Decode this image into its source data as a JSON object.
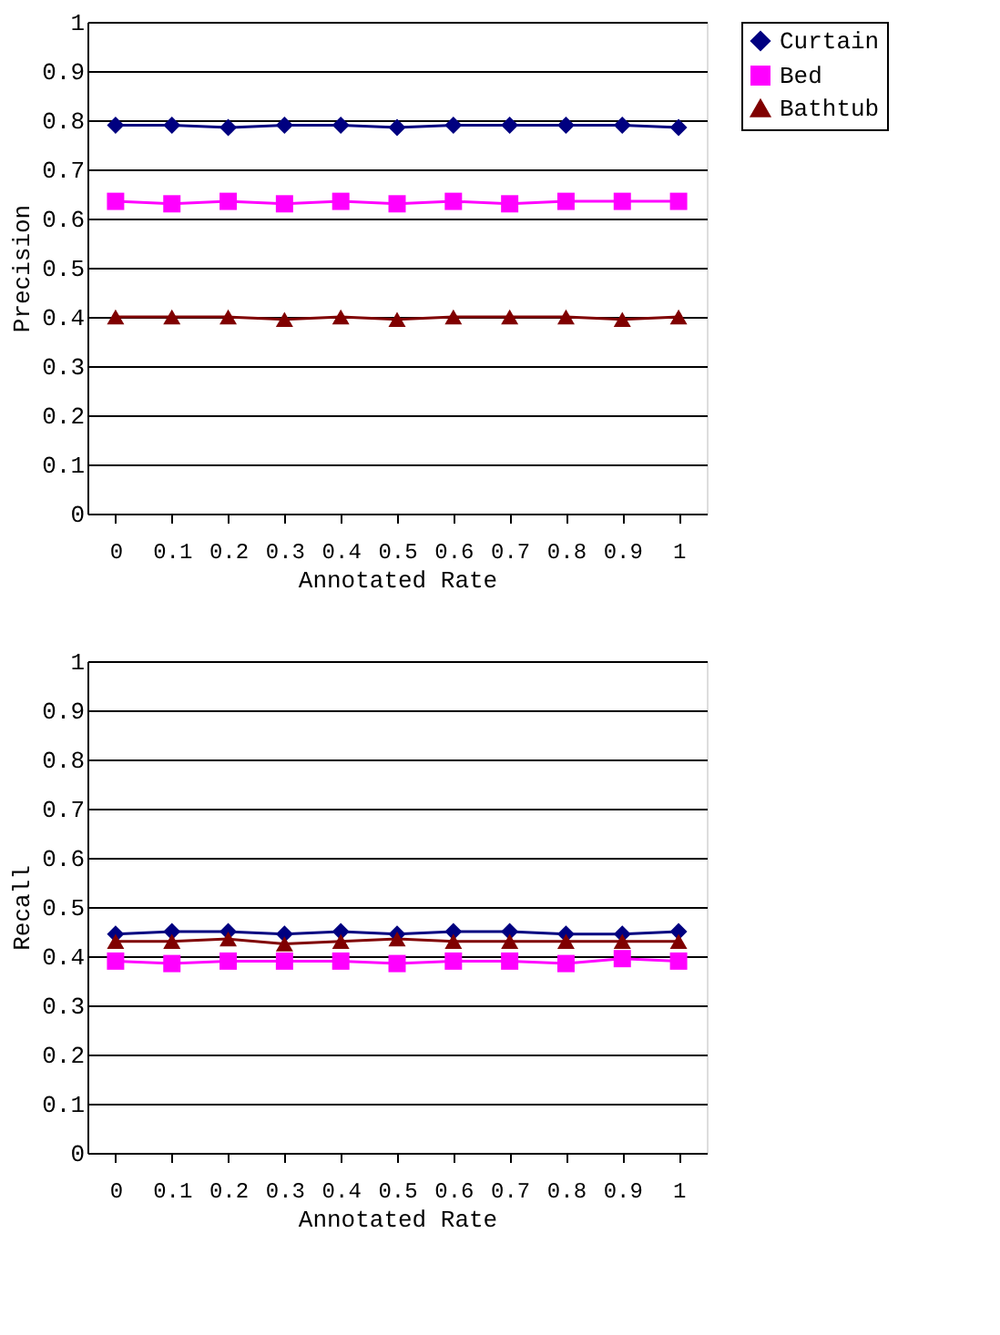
{
  "chart_data": [
    {
      "type": "line",
      "xlabel": "Annotated Rate",
      "ylabel": "Precision",
      "categories": [
        "0",
        "0.1",
        "0.2",
        "0.3",
        "0.4",
        "0.5",
        "0.6",
        "0.7",
        "0.8",
        "0.9",
        "1"
      ],
      "ylim": [
        0,
        1
      ],
      "yticks": [
        0,
        0.1,
        0.2,
        0.3,
        0.4,
        0.5,
        0.6,
        0.7,
        0.8,
        0.9,
        1
      ],
      "grid": "y",
      "legend": "right",
      "series": [
        {
          "name": "Curtain",
          "color": "#000080",
          "marker": "diamond",
          "values": [
            0.79,
            0.79,
            0.785,
            0.79,
            0.79,
            0.785,
            0.79,
            0.79,
            0.79,
            0.79,
            0.785
          ]
        },
        {
          "name": "Bed",
          "color": "#ff00ff",
          "marker": "square",
          "values": [
            0.635,
            0.63,
            0.635,
            0.63,
            0.635,
            0.63,
            0.635,
            0.63,
            0.635,
            0.635,
            0.635
          ]
        },
        {
          "name": "Bathtub",
          "color": "#800000",
          "marker": "triangle",
          "values": [
            0.4,
            0.4,
            0.4,
            0.395,
            0.4,
            0.395,
            0.4,
            0.4,
            0.4,
            0.395,
            0.4
          ]
        }
      ]
    },
    {
      "type": "line",
      "xlabel": "Annotated Rate",
      "ylabel": "Recall",
      "categories": [
        "0",
        "0.1",
        "0.2",
        "0.3",
        "0.4",
        "0.5",
        "0.6",
        "0.7",
        "0.8",
        "0.9",
        "1"
      ],
      "ylim": [
        0,
        1
      ],
      "yticks": [
        0,
        0.1,
        0.2,
        0.3,
        0.4,
        0.5,
        0.6,
        0.7,
        0.8,
        0.9,
        1
      ],
      "grid": "y",
      "legend": "right",
      "series": [
        {
          "name": "Curtain",
          "color": "#000080",
          "marker": "diamond",
          "values": [
            0.445,
            0.45,
            0.45,
            0.445,
            0.45,
            0.445,
            0.45,
            0.45,
            0.445,
            0.445,
            0.45
          ]
        },
        {
          "name": "Bed",
          "color": "#ff00ff",
          "marker": "square",
          "values": [
            0.39,
            0.385,
            0.39,
            0.39,
            0.39,
            0.385,
            0.39,
            0.39,
            0.385,
            0.395,
            0.39
          ]
        },
        {
          "name": "Bathtub",
          "color": "#800000",
          "marker": "triangle",
          "values": [
            0.43,
            0.43,
            0.435,
            0.425,
            0.43,
            0.435,
            0.43,
            0.43,
            0.43,
            0.43,
            0.43
          ]
        }
      ]
    }
  ]
}
